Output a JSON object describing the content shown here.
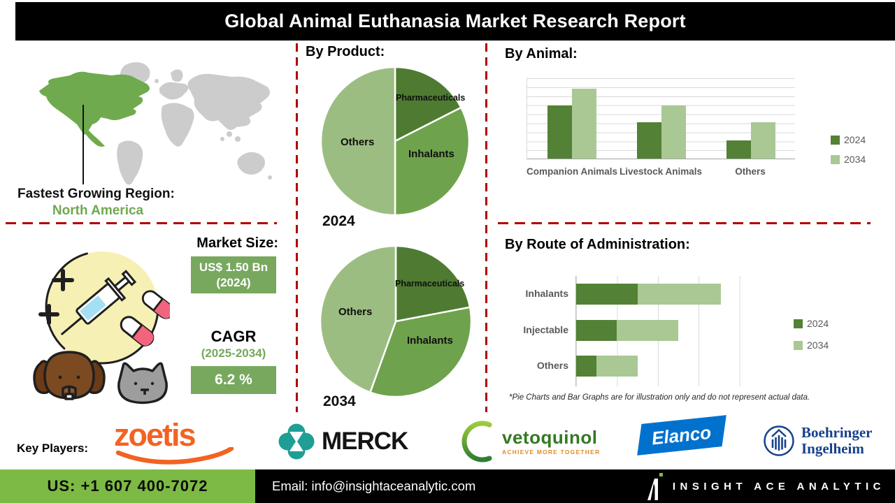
{
  "title": "Global Animal Euthanasia Market Research Report",
  "region": {
    "label": "Fastest Growing Region:",
    "value": "North America"
  },
  "market": {
    "heading": "Market Size:",
    "size_value": "US$ 1.50 Bn",
    "size_year": "(2024)",
    "cagr_heading": "CAGR",
    "cagr_period": "(2025-2034)",
    "cagr_value": "6.2 %"
  },
  "sections": {
    "product": "By Product:",
    "animal": "By Animal:",
    "route": "By Route of Administration:"
  },
  "disclaimer": "*Pie Charts and Bar Graphs are for illustration only and do not represent actual data.",
  "key_players": {
    "heading": "Key Players:",
    "zoetis": "zoetis",
    "merck": "MERCK",
    "vetoquinol": "vetoquinol",
    "vetoquinol_tagline": "ACHIEVE MORE TOGETHER",
    "elanco": "Elanco",
    "boehringer_line1": "Boehringer",
    "boehringer_line2": "Ingelheim"
  },
  "footer": {
    "phone": "US: +1 607 400-7072",
    "email": "Email: info@insightaceanalytic.com",
    "brand": "INSIGHT ACE ANALYTIC"
  },
  "colors": {
    "series_dark_green": "#538135",
    "series_light_green": "#a9c894",
    "pie_dark": "#4e7b31",
    "pie_mid": "#6fa24c",
    "pie_light": "#9cbd81",
    "box_green": "#77a85e",
    "footer_green": "#7dba45",
    "dashed_red": "#b00000",
    "map_highlight_green": "#6fab4e",
    "map_gray": "#cccccc",
    "elanco_blue": "#0072ce",
    "zoetis_orange": "#f26322",
    "merck_teal": "#1e9e94",
    "boehringer_blue": "#16418c"
  },
  "chart_data": [
    {
      "id": "by-product-2024",
      "type": "pie",
      "title": "By Product:",
      "year_label": "2024",
      "slices": [
        {
          "label": "Pharmaceuticals",
          "value": 17.5
        },
        {
          "label": "Inhalants",
          "value": 32.5
        },
        {
          "label": "Others",
          "value": 50
        }
      ],
      "colors": [
        "#4e7b31",
        "#6fa24c",
        "#9cbd81"
      ],
      "note": "values estimated; chart marked illustrative"
    },
    {
      "id": "by-product-2034",
      "type": "pie",
      "title": "By Product:",
      "year_label": "2034",
      "slices": [
        {
          "label": "Pharmaceuticals",
          "value": 22
        },
        {
          "label": "Inhalants",
          "value": 33.5
        },
        {
          "label": "Others",
          "value": 44.5
        }
      ],
      "colors": [
        "#4e7b31",
        "#6fa24c",
        "#9cbd81"
      ],
      "note": "values estimated; chart marked illustrative"
    },
    {
      "id": "by-animal",
      "type": "bar",
      "title": "By Animal:",
      "categories": [
        "Companion Animals",
        "Livestock Animals",
        "Others"
      ],
      "series": [
        {
          "name": "2024",
          "color": "#538135",
          "values": [
            5.9,
            4,
            2
          ]
        },
        {
          "name": "2034",
          "color": "#a9c894",
          "values": [
            7.8,
            5.9,
            4
          ]
        }
      ],
      "ylim": [
        0,
        9
      ],
      "grid": true,
      "legend_position": "right",
      "note": "values estimated; chart marked illustrative"
    },
    {
      "id": "by-route",
      "type": "stacked-hbar",
      "title": "By Route of Administration:",
      "categories": [
        "Inhalants",
        "Injectable",
        "Others"
      ],
      "series": [
        {
          "name": "2024",
          "color": "#538135",
          "values": [
            1.5,
            1,
            0.5
          ]
        },
        {
          "name": "2034",
          "color": "#a9c894",
          "values": [
            2.05,
            1.5,
            1
          ]
        }
      ],
      "xlim": [
        0,
        4.5
      ],
      "grid": true,
      "legend_position": "right",
      "note": "values estimated; chart marked illustrative"
    }
  ]
}
